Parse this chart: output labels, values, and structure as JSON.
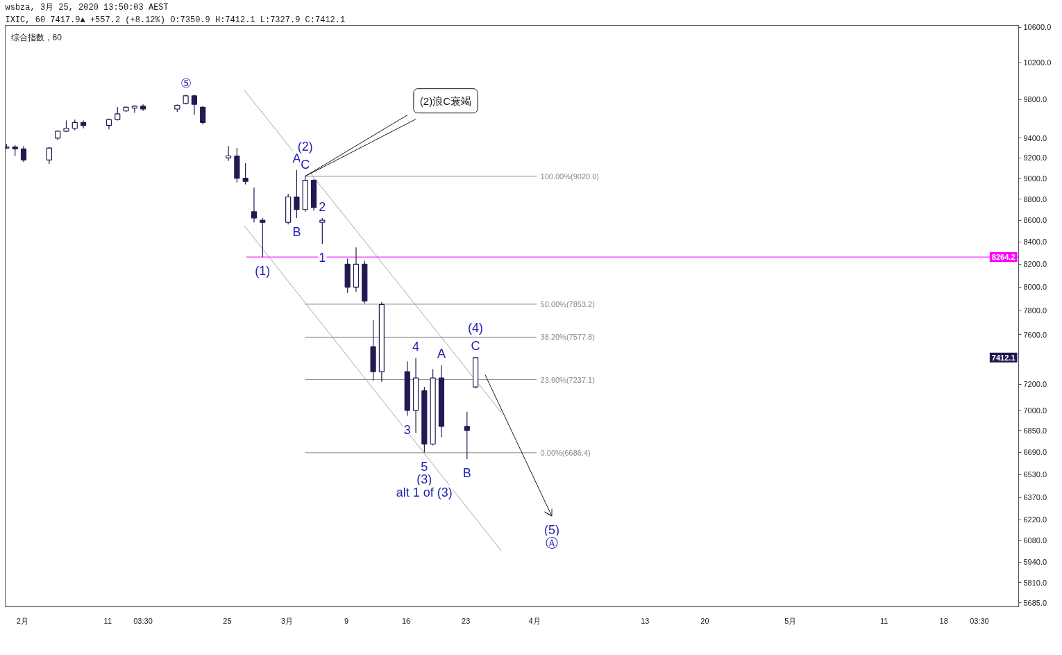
{
  "chart_data": {
    "type": "candlestick",
    "title": "wsbza, 3月 25, 2020 13:50:03 AEST",
    "subtitle": "IXIC, 60 7417.9▲ +557.2 (+8.12%) O:7350.9 H:7412.1 L:7327.9 C:7412.1",
    "color": "#211a52",
    "grid": false,
    "log": "y",
    "xlim": [
      "2020-01-30T00:00",
      "2020-05-27T18:00"
    ],
    "xticks": [
      {
        "value": "2020-02-01T00:30",
        "label": "2月"
      },
      {
        "value": "2020-02-11T00:30",
        "label": "11"
      },
      {
        "value": "2020-02-15T03:30",
        "label": "03:30"
      },
      {
        "value": "2020-02-25T00:30",
        "label": "25"
      },
      {
        "value": "2020-03-03T00:30",
        "label": "3月"
      },
      {
        "value": "2020-03-09T23:30",
        "label": "9"
      },
      {
        "value": "2020-03-16T23:30",
        "label": "16"
      },
      {
        "value": "2020-03-23T23:30",
        "label": "23"
      },
      {
        "value": "2020-04-01T00:30",
        "label": "4月"
      },
      {
        "value": "2020-04-13T23:30",
        "label": "13"
      },
      {
        "value": "2020-04-20T23:30",
        "label": "20"
      },
      {
        "value": "2020-05-01T00:30",
        "label": "5月"
      },
      {
        "value": "2020-05-11T23:30",
        "label": "11"
      },
      {
        "value": "2020-05-18T23:30",
        "label": "18"
      },
      {
        "value": "2020-05-23T03:30",
        "label": "03:30"
      }
    ],
    "ylim": [
      5660,
      10620
    ],
    "yticks": [
      {
        "value": 10600,
        "label": "10600.0"
      },
      {
        "value": 10200,
        "label": "10200.0"
      },
      {
        "value": 9800,
        "label": "9800.0"
      },
      {
        "value": 9400,
        "label": "9400.0"
      },
      {
        "value": 9200,
        "label": "9200.0"
      },
      {
        "value": 9000,
        "label": "9000.0"
      },
      {
        "value": 8800,
        "label": "8800.0"
      },
      {
        "value": 8600,
        "label": "8600.0"
      },
      {
        "value": 8400,
        "label": "8400.0"
      },
      {
        "value": 8200,
        "label": "8200.0"
      },
      {
        "value": 8000,
        "label": "8000.0"
      },
      {
        "value": 7800,
        "label": "7800.0"
      },
      {
        "value": 7600,
        "label": "7600.0"
      },
      {
        "value": 7200,
        "label": "7200.0"
      },
      {
        "value": 7000,
        "label": "7000.0"
      },
      {
        "value": 6850,
        "label": "6850.0"
      },
      {
        "value": 6690,
        "label": "6690.0"
      },
      {
        "value": 6530,
        "label": "6530.0"
      },
      {
        "value": 6370,
        "label": "6370.0"
      },
      {
        "value": 6220,
        "label": "6220.0"
      },
      {
        "value": 6080,
        "label": "6080.0"
      },
      {
        "value": 5940,
        "label": "5940.0"
      },
      {
        "value": 5810,
        "label": "5810.0"
      },
      {
        "value": 5685,
        "label": "5685.0"
      }
    ],
    "x": [
      "2020-01-30T03:45",
      "2020-01-31T03:45",
      "2020-02-01T03:45",
      "2020-02-04T03:45",
      "2020-02-05T03:45",
      "2020-02-06T03:45",
      "2020-02-07T03:45",
      "2020-02-08T03:45",
      "2020-02-11T03:45",
      "2020-02-12T03:45",
      "2020-02-13T03:45",
      "2020-02-14T03:45",
      "2020-02-15T03:45",
      "2020-02-19T03:45",
      "2020-02-20T03:45",
      "2020-02-21T03:45",
      "2020-02-22T03:45",
      "2020-02-25T03:45",
      "2020-02-26T03:45",
      "2020-02-27T03:45",
      "2020-02-28T03:45",
      "2020-02-29T03:45",
      "2020-03-03T03:45",
      "2020-03-04T03:45",
      "2020-03-05T03:45",
      "2020-03-06T03:45",
      "2020-03-07T03:45",
      "2020-03-10T02:45",
      "2020-03-11T02:45",
      "2020-03-12T02:45",
      "2020-03-13T02:45",
      "2020-03-14T02:45",
      "2020-03-17T02:45",
      "2020-03-18T02:45",
      "2020-03-19T02:45",
      "2020-03-20T02:45",
      "2020-03-21T02:45",
      "2020-03-24T02:45",
      "2020-03-25T02:45"
    ],
    "ohlc": [
      [
        9300,
        9340,
        9290,
        9310
      ],
      [
        9310,
        9330,
        9220,
        9290
      ],
      [
        9290,
        9320,
        9160,
        9180
      ],
      [
        9180,
        9310,
        9140,
        9300
      ],
      [
        9400,
        9480,
        9380,
        9470
      ],
      [
        9470,
        9580,
        9460,
        9500
      ],
      [
        9500,
        9590,
        9480,
        9560
      ],
      [
        9560,
        9580,
        9500,
        9530
      ],
      [
        9530,
        9600,
        9490,
        9590
      ],
      [
        9590,
        9720,
        9580,
        9650
      ],
      [
        9680,
        9730,
        9670,
        9720
      ],
      [
        9710,
        9740,
        9660,
        9730
      ],
      [
        9730,
        9750,
        9680,
        9700
      ],
      [
        9700,
        9750,
        9670,
        9740
      ],
      [
        9760,
        9850,
        9750,
        9840
      ],
      [
        9840,
        9850,
        9640,
        9750
      ],
      [
        9720,
        9730,
        9540,
        9560
      ],
      [
        9200,
        9320,
        9170,
        9220
      ],
      [
        9220,
        9300,
        8960,
        9000
      ],
      [
        9000,
        9150,
        8940,
        8970
      ],
      [
        8680,
        8910,
        8580,
        8620
      ],
      [
        8600,
        8620,
        8264,
        8580
      ],
      [
        8580,
        8850,
        8560,
        8820
      ],
      [
        8820,
        9080,
        8620,
        8700
      ],
      [
        8700,
        9020,
        8680,
        8980
      ],
      [
        8980,
        8990,
        8690,
        8720
      ],
      [
        8580,
        8620,
        8384,
        8600
      ],
      [
        8200,
        8250,
        7950,
        8000
      ],
      [
        8000,
        8350,
        7960,
        8200
      ],
      [
        8200,
        8230,
        7860,
        7880
      ],
      [
        7500,
        7720,
        7230,
        7300
      ],
      [
        7300,
        7870,
        7220,
        7850
      ],
      [
        7300,
        7380,
        6960,
        7000
      ],
      [
        7000,
        7410,
        6830,
        7250
      ],
      [
        7150,
        7180,
        6690,
        6750
      ],
      [
        6750,
        7320,
        6740,
        7250
      ],
      [
        7250,
        7350,
        6800,
        6880
      ],
      [
        6880,
        6990,
        6640,
        6850
      ],
      [
        7180,
        7412.1,
        7170,
        7412.1
      ]
    ],
    "series": [
      {
        "type": "line",
        "color": "#a3a6ad",
        "x": [
          "2020-02-27T01:12",
          "2020-03-28T02:42"
        ],
        "values": [
          9897,
          6986
        ]
      },
      {
        "type": "line",
        "color": "#a3a6ad",
        "x": [
          "2020-02-27T01:12",
          "2020-03-28T02:42"
        ],
        "values": [
          8546,
          6014
        ]
      },
      {
        "type": "line",
        "name": "100.00%(9020.0)",
        "color": "#878787",
        "x": [
          "2020-03-05T04:00",
          "2020-04-01T05:30"
        ],
        "values": [
          9020.0,
          9020.0
        ]
      },
      {
        "type": "line",
        "name": "50.00%(7853.2)",
        "color": "#878787",
        "x": [
          "2020-03-05T04:00",
          "2020-04-01T05:30"
        ],
        "values": [
          7853.2,
          7853.2
        ]
      },
      {
        "type": "line",
        "name": "38.20%(7577.8)",
        "color": "#878787",
        "x": [
          "2020-03-05T04:00",
          "2020-04-01T05:30"
        ],
        "values": [
          7577.8,
          7577.8
        ]
      },
      {
        "type": "line",
        "name": "23.60%(7237.1)",
        "color": "#878787",
        "x": [
          "2020-03-05T04:00",
          "2020-04-01T05:30"
        ],
        "values": [
          7237.1,
          7237.1
        ]
      },
      {
        "type": "line",
        "name": "0.00%(6686.4)",
        "color": "#878787",
        "x": [
          "2020-03-05T04:00",
          "2020-04-01T05:30"
        ],
        "values": [
          6686.4,
          6686.4
        ]
      },
      {
        "type": "line",
        "name": "8264.2",
        "color": "#ff00ff",
        "x": [
          "2020-02-27T06:42",
          "2020-05-27T18:00"
        ],
        "values": [
          8264.2,
          8264.2
        ]
      },
      {
        "type": "line",
        "color": "#131722",
        "x": [
          "2020-03-26T05:42",
          "2020-04-03T01:06",
          "2020-04-02T05:00",
          "2020-04-03T01:06",
          "2020-04-03T01:24"
        ],
        "values": [
          7275,
          6244,
          6272,
          6244,
          6291
        ]
      }
    ],
    "annotations": [
      "综合指数，60",
      {
        "text": "⑤",
        "x": "2020-02-20T03:45",
        "y": 9850
      },
      {
        "text": "A",
        "x": "2020-03-04T03:45",
        "y": 9080
      },
      {
        "text": "C",
        "x": "2020-03-05T03:45",
        "y": 9020
      },
      {
        "text": "(2)",
        "x": "2020-03-05T03:45",
        "y": 9020
      },
      {
        "text": "B",
        "x": "2020-03-04T03:45",
        "y": 8620
      },
      {
        "text": "2",
        "x": "2020-03-07T03:45",
        "y": 8620
      },
      {
        "text": "1",
        "x": "2020-03-07T03:45",
        "y": 8384
      },
      {
        "text": "(1)",
        "x": "2020-02-29T03:45",
        "y": 8264
      },
      {
        "text": "4",
        "x": "2020-03-18T02:45",
        "y": 7410
      },
      {
        "text": "A",
        "x": "2020-03-21T02:45",
        "y": 7350
      },
      {
        "text": "C",
        "x": "2020-03-25T02:45",
        "y": 7412.1
      },
      {
        "text": "(4)",
        "x": "2020-03-25T02:45",
        "y": 7412.1
      },
      {
        "text": "3",
        "x": "2020-03-17T02:45",
        "y": 6960
      },
      {
        "text": "5",
        "x": "2020-03-19T02:45",
        "y": 6690
      },
      {
        "text": "(3)",
        "x": "2020-03-19T02:45",
        "y": 6690
      },
      {
        "text": "alt 1 of (3)",
        "x": "2020-03-19T02:45",
        "y": 6690
      },
      {
        "text": "B",
        "x": "2020-03-24T02:45",
        "y": 6640
      },
      {
        "text": "(5)",
        "x": "2020-04-03T01:06",
        "y": 6244
      },
      {
        "text": "Ⓐ",
        "x": "2020-04-03T01:06",
        "y": 6244
      },
      {
        "text": "(2)浪C衰竭",
        "x": "2020-03-05T04:00",
        "y": 9020.0
      },
      {
        "text": "7412.1",
        "y": 7412.1
      }
    ]
  }
}
